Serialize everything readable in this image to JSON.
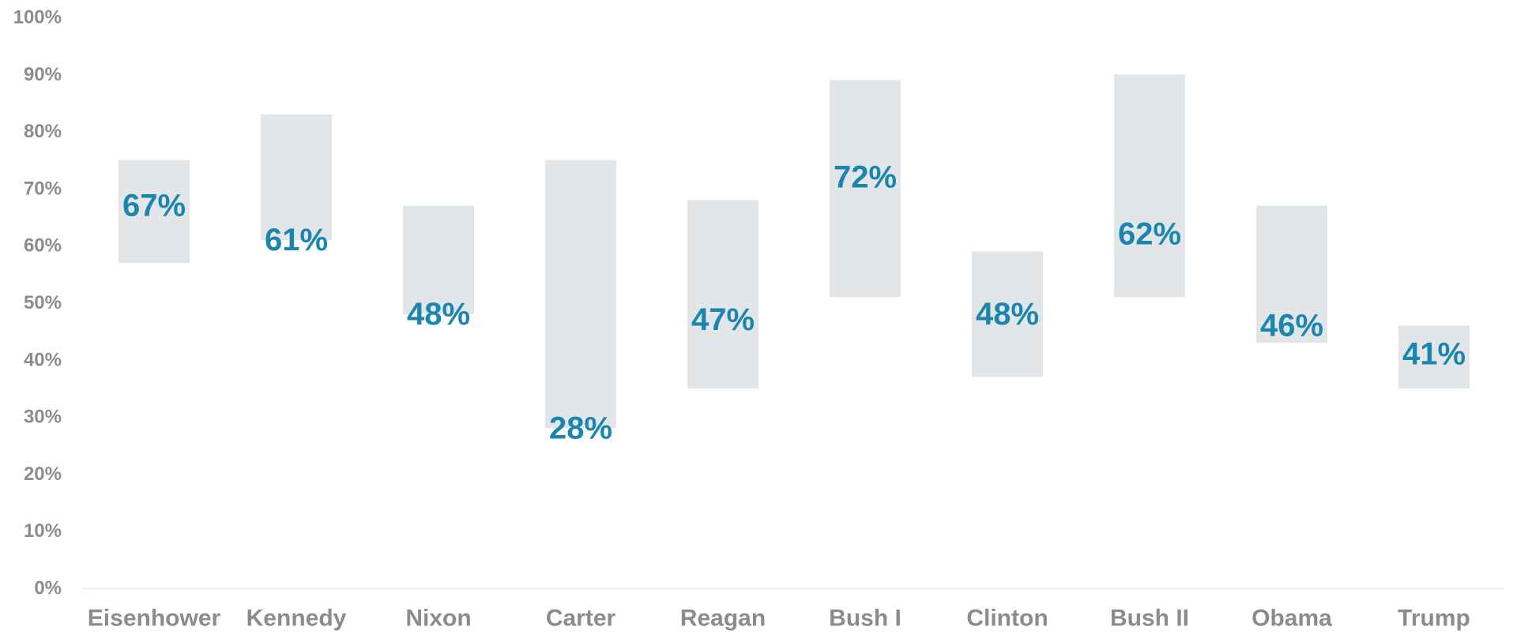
{
  "chart_data": {
    "type": "bar",
    "subtype": "floating-range",
    "categories": [
      "Eisenhower",
      "Kennedy",
      "Nixon",
      "Carter",
      "Reagan",
      "Bush I",
      "Clinton",
      "Bush II",
      "Obama",
      "Trump"
    ],
    "range_low": [
      57,
      61,
      48,
      28,
      35,
      51,
      37,
      51,
      43,
      35
    ],
    "range_high": [
      75,
      83,
      67,
      75,
      68,
      89,
      59,
      90,
      67,
      46
    ],
    "values": [
      67,
      61,
      48,
      28,
      47,
      72,
      48,
      62,
      46,
      41
    ],
    "value_labels": [
      "67%",
      "61%",
      "48%",
      "28%",
      "47%",
      "72%",
      "48%",
      "62%",
      "46%",
      "41%"
    ],
    "yticks": [
      0,
      10,
      20,
      30,
      40,
      50,
      60,
      70,
      80,
      90,
      100
    ],
    "ytick_labels": [
      "0%",
      "10%",
      "20%",
      "30%",
      "40%",
      "50%",
      "60%",
      "70%",
      "80%",
      "90%",
      "100%"
    ],
    "ylim": [
      0,
      100
    ],
    "title": "",
    "xlabel": "",
    "ylabel": "",
    "grid": false,
    "legend": "none",
    "colors": {
      "range_bar": "#e2e6e9",
      "value_label": "#1a86b0",
      "axis_text": "#8c8c8c",
      "baseline": "#eeeeee"
    }
  }
}
